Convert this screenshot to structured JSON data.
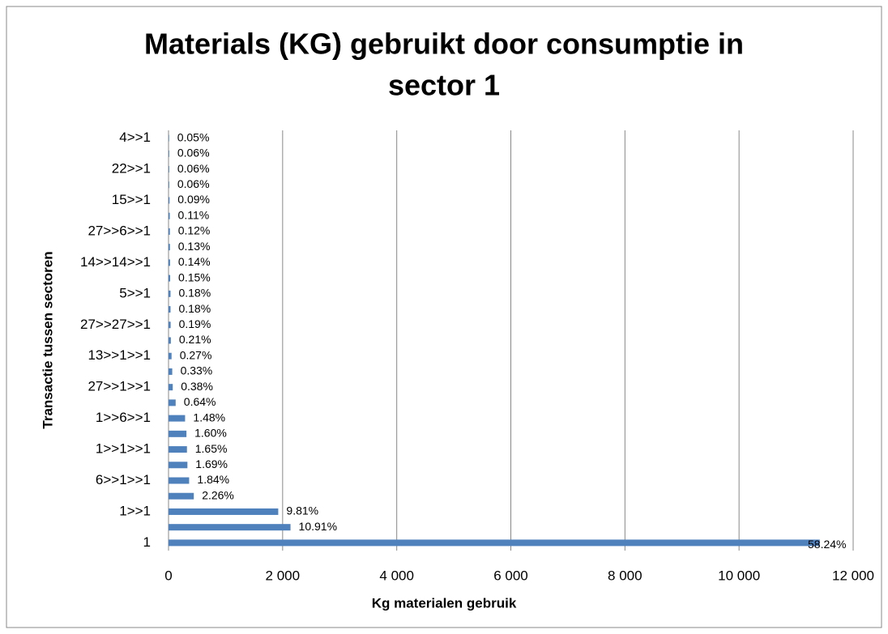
{
  "chart_data": {
    "type": "bar",
    "orientation": "horizontal",
    "title": [
      "Materials (KG) gebruikt door consumptie in",
      "sector 1"
    ],
    "x_label": "Kg materialen gebruik",
    "y_label": "Transactie tussen sectoren",
    "categories": [
      "1",
      null,
      "1>>1",
      null,
      "6>>1>>1",
      null,
      "1>>1>>1",
      null,
      "1>>6>>1",
      null,
      "27>>1>>1",
      null,
      "13>>1>>1",
      null,
      "27>>27>>1",
      null,
      "5>>1",
      null,
      "14>>14>>1",
      null,
      "27>>6>>1",
      null,
      "15>>1",
      null,
      "22>>1",
      null,
      "4>>1"
    ],
    "values": [
      11415,
      2138,
      1923,
      443,
      361,
      331,
      323,
      314,
      290,
      125,
      74,
      65,
      53,
      41,
      37,
      35,
      35,
      29,
      27,
      25,
      24,
      22,
      18,
      12,
      12,
      12,
      10
    ],
    "value_labels": [
      "58.24%",
      "10.91%",
      "9.81%",
      "2.26%",
      "1.84%",
      "1.69%",
      "1.65%",
      "1.60%",
      "1.48%",
      "0.64%",
      "0.38%",
      "0.33%",
      "0.27%",
      "0.21%",
      "0.19%",
      "0.18%",
      "0.18%",
      "0.15%",
      "0.14%",
      "0.13%",
      "0.12%",
      "0.11%",
      "0.09%",
      "0.06%",
      "0.06%",
      "0.06%",
      "0.05%"
    ],
    "color": "#4f81bd",
    "xlim": [
      0,
      12000
    ],
    "xticks": [
      0,
      {
        "value": 2000,
        "label": "2 000"
      },
      {
        "value": 4000,
        "label": "4 000"
      },
      {
        "value": 6000,
        "label": "6 000"
      },
      {
        "value": 8000,
        "label": "8 000"
      },
      {
        "value": 10000,
        "label": "10 000"
      },
      {
        "value": 12000,
        "label": "12 000"
      }
    ],
    "grid": true
  }
}
